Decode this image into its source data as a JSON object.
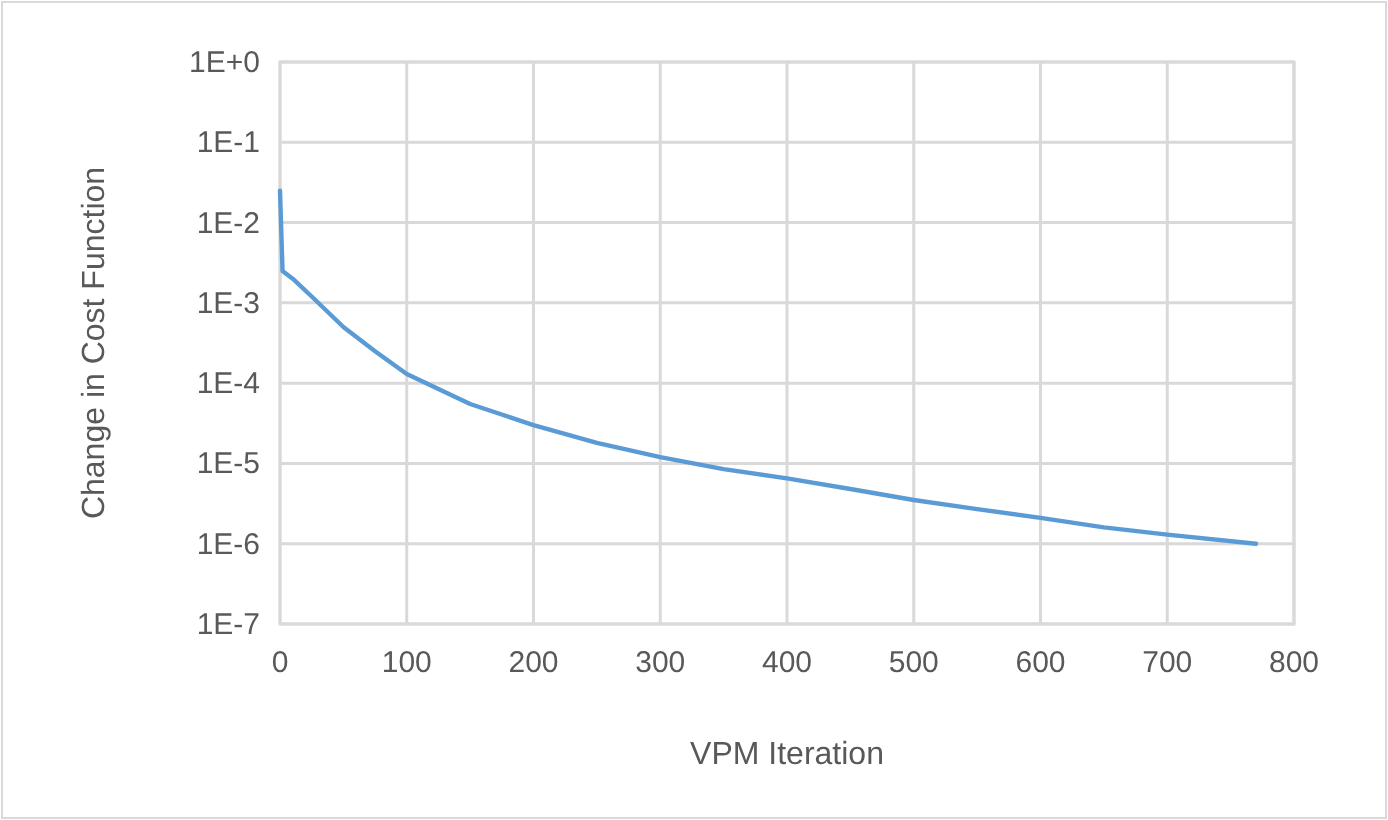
{
  "chart_data": {
    "type": "line",
    "xlabel": "VPM Iteration",
    "ylabel": "Change in Cost Function",
    "log": "y",
    "grid": true,
    "marker": "none",
    "xlim": [
      0,
      800
    ],
    "xticks": [
      0,
      100,
      200,
      300,
      400,
      500,
      600,
      700,
      800
    ],
    "ylim": [
      1e-07,
      1
    ],
    "yticks": [
      {
        "value": 1,
        "label": "1E+0"
      },
      {
        "value": 0.1,
        "label": "1E-1"
      },
      {
        "value": 0.01,
        "label": "1E-2"
      },
      {
        "value": 0.001,
        "label": "1E-3"
      },
      {
        "value": 0.0001,
        "label": "1E-4"
      },
      {
        "value": 1e-05,
        "label": "1E-5"
      },
      {
        "value": 1e-06,
        "label": "1E-6"
      },
      {
        "value": 1e-07,
        "label": "1E-7"
      }
    ],
    "series": [
      {
        "color": "#5b9bd5",
        "x": [
          0,
          2,
          10,
          25,
          50,
          75,
          100,
          150,
          200,
          250,
          300,
          350,
          400,
          450,
          500,
          550,
          600,
          650,
          700,
          770
        ],
        "values": [
          0.025,
          0.0025,
          0.002,
          0.0012,
          0.0005,
          0.00025,
          0.00013,
          5.5e-05,
          3e-05,
          1.8e-05,
          1.2e-05,
          8.5e-06,
          6.5e-06,
          4.8e-06,
          3.5e-06,
          2.7e-06,
          2.1e-06,
          1.6e-06,
          1.3e-06,
          1e-06
        ]
      }
    ]
  }
}
